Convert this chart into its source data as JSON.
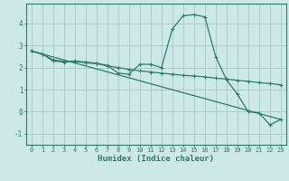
{
  "title": "",
  "xlabel": "Humidex (Indice chaleur)",
  "ylabel": "",
  "bg_color": "#cce8e8",
  "grid_color": "#aacccc",
  "line_color": "#2e7b6e",
  "xlim": [
    -0.5,
    23.5
  ],
  "ylim": [
    -1.5,
    4.9
  ],
  "yticks": [
    -1,
    0,
    1,
    2,
    3,
    4
  ],
  "xticks": [
    0,
    1,
    2,
    3,
    4,
    5,
    6,
    7,
    8,
    9,
    10,
    11,
    12,
    13,
    14,
    15,
    16,
    17,
    18,
    19,
    20,
    21,
    22,
    23
  ],
  "line1_x": [
    0,
    1,
    2,
    3,
    4,
    5,
    6,
    7,
    8,
    9,
    10,
    11,
    12,
    13,
    14,
    15,
    16,
    17,
    18,
    19,
    20,
    21,
    22,
    23
  ],
  "line1_y": [
    2.75,
    2.62,
    2.3,
    2.25,
    2.3,
    2.25,
    2.2,
    2.1,
    1.75,
    1.7,
    2.15,
    2.15,
    2.0,
    3.75,
    4.35,
    4.4,
    4.3,
    2.5,
    1.45,
    0.8,
    0.0,
    -0.05,
    -0.6,
    -0.35
  ],
  "line2_x": [
    0,
    1,
    2,
    3,
    4,
    5,
    6,
    7,
    8,
    9,
    10,
    11,
    12,
    13,
    14,
    15,
    16,
    17,
    18,
    19,
    20,
    21,
    22,
    23
  ],
  "line2_y": [
    2.75,
    2.62,
    2.35,
    2.28,
    2.28,
    2.22,
    2.18,
    2.08,
    2.0,
    1.92,
    1.85,
    1.8,
    1.75,
    1.7,
    1.65,
    1.62,
    1.58,
    1.52,
    1.48,
    1.42,
    1.38,
    1.32,
    1.28,
    1.22
  ],
  "line3_x": [
    0,
    23
  ],
  "line3_y": [
    2.75,
    -0.35
  ]
}
